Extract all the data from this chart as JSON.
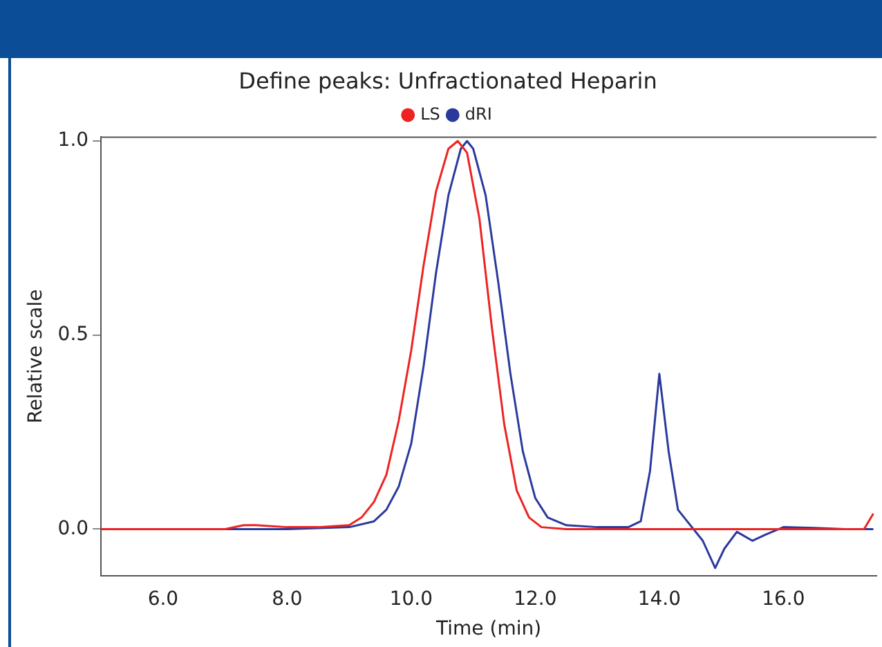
{
  "chart_data": {
    "type": "line",
    "title": "Define peaks: Unfractionated Heparin",
    "xlabel": "Time (min)",
    "ylabel": "Relative scale",
    "xlim": [
      5.0,
      17.5
    ],
    "xticks": [
      {
        "value": 6,
        "label": "6.0"
      },
      {
        "value": 8,
        "label": "8.0"
      },
      {
        "value": 10,
        "label": "10.0"
      },
      {
        "value": 12,
        "label": "12.0"
      },
      {
        "value": 14,
        "label": "14.0"
      },
      {
        "value": 16,
        "label": "16.0"
      }
    ],
    "ylim": [
      -0.12,
      1.01
    ],
    "yticks": [
      {
        "value": 0,
        "label": "0.0"
      },
      {
        "value": 0.5,
        "label": "0.5"
      },
      {
        "value": 1,
        "label": "1.0"
      }
    ],
    "legend": "top",
    "grid": false,
    "marker": "none",
    "line_style": "solid",
    "series": [
      {
        "name": "LS",
        "color": "#ee2222",
        "x": [
          5.0,
          7.0,
          7.3,
          7.5,
          8.0,
          8.5,
          9.0,
          9.2,
          9.4,
          9.6,
          9.8,
          10.0,
          10.2,
          10.4,
          10.6,
          10.75,
          10.9,
          11.1,
          11.3,
          11.5,
          11.7,
          11.9,
          12.1,
          12.5,
          14.0,
          16.0,
          17.3,
          17.45
        ],
        "values": [
          0,
          0,
          0.01,
          0.01,
          0.005,
          0.005,
          0.01,
          0.03,
          0.07,
          0.14,
          0.28,
          0.46,
          0.68,
          0.87,
          0.98,
          1.0,
          0.97,
          0.8,
          0.52,
          0.27,
          0.1,
          0.03,
          0.005,
          0,
          0,
          0,
          0,
          0.04
        ]
      },
      {
        "name": "dRI",
        "color": "#2a3a9c",
        "x": [
          5.0,
          8.0,
          9.0,
          9.4,
          9.6,
          9.8,
          10.0,
          10.2,
          10.4,
          10.6,
          10.8,
          10.9,
          11.0,
          11.2,
          11.4,
          11.6,
          11.8,
          12.0,
          12.2,
          12.5,
          13.0,
          13.5,
          13.7,
          13.85,
          14.0,
          14.15,
          14.3,
          14.5,
          14.7,
          14.9,
          15.05,
          15.25,
          15.5,
          15.7,
          16.0,
          16.5,
          17.0,
          17.45
        ],
        "values": [
          0,
          0,
          0.005,
          0.02,
          0.05,
          0.11,
          0.22,
          0.42,
          0.66,
          0.86,
          0.98,
          1.0,
          0.98,
          0.86,
          0.64,
          0.4,
          0.2,
          0.08,
          0.03,
          0.01,
          0.005,
          0.005,
          0.02,
          0.15,
          0.4,
          0.2,
          0.05,
          0.01,
          -0.03,
          -0.1,
          -0.05,
          -0.007,
          -0.03,
          -0.015,
          0.005,
          0.003,
          0,
          0
        ]
      }
    ]
  }
}
